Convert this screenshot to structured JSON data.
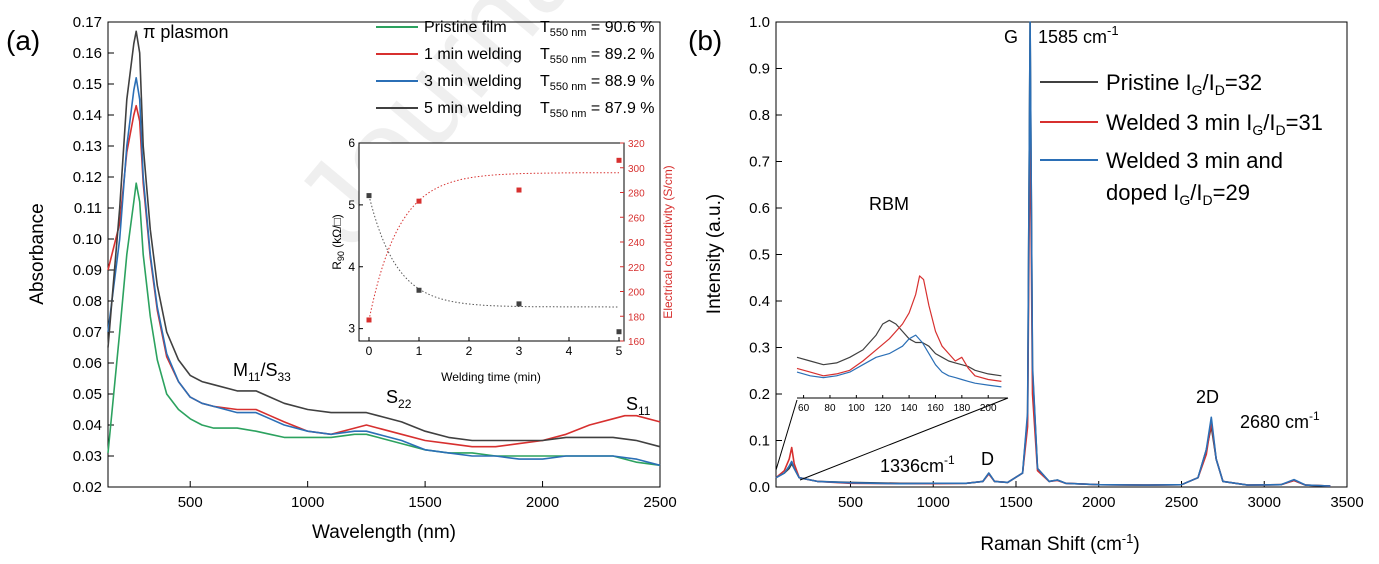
{
  "chart_data": [
    {
      "panel": "(a)",
      "type": "line",
      "xlabel": "Wavelength (nm)",
      "ylabel": "Absorbance",
      "xlim": [
        150,
        2500
      ],
      "ylim": [
        0.02,
        0.17
      ],
      "xticks": [
        500,
        1000,
        1500,
        2000,
        2500
      ],
      "yticks": [
        0.02,
        0.03,
        0.04,
        0.05,
        0.06,
        0.07,
        0.08,
        0.09,
        0.1,
        0.11,
        0.12,
        0.13,
        0.14,
        0.15,
        0.16,
        0.17
      ],
      "colors": [
        "#2ca25f",
        "#d7302f",
        "#2b6fb6",
        "#404040"
      ],
      "legend": [
        {
          "label": "Pristine film",
          "tlabel": "T",
          "tsub": "550 nm",
          "tvalue": " = 90.6 %"
        },
        {
          "label": "1 min welding",
          "tlabel": "T",
          "tsub": "550 nm",
          "tvalue": " = 89.2 %"
        },
        {
          "label": "3 min welding",
          "tlabel": "T",
          "tsub": "550 nm",
          "tvalue": " = 88.9 %"
        },
        {
          "label": "5 min welding",
          "tlabel": "T",
          "tsub": "550 nm",
          "tvalue": " = 87.9 %"
        }
      ],
      "series": [
        {
          "name": "Pristine film",
          "x": [
            150,
            200,
            230,
            260,
            270,
            285,
            300,
            330,
            360,
            400,
            450,
            500,
            550,
            600,
            700,
            780,
            840,
            900,
            1000,
            1100,
            1200,
            1250,
            1300,
            1400,
            1500,
            1600,
            1700,
            1800,
            1900,
            2000,
            2100,
            2200,
            2300,
            2400,
            2500
          ],
          "y": [
            0.031,
            0.07,
            0.095,
            0.112,
            0.118,
            0.112,
            0.095,
            0.075,
            0.061,
            0.05,
            0.045,
            0.042,
            0.04,
            0.039,
            0.039,
            0.038,
            0.037,
            0.036,
            0.036,
            0.036,
            0.037,
            0.037,
            0.036,
            0.034,
            0.032,
            0.031,
            0.031,
            0.03,
            0.03,
            0.03,
            0.03,
            0.03,
            0.03,
            0.028,
            0.027
          ]
        },
        {
          "name": "1 min welding",
          "x": [
            150,
            200,
            230,
            260,
            270,
            285,
            300,
            330,
            360,
            400,
            450,
            500,
            550,
            600,
            700,
            780,
            840,
            900,
            1000,
            1100,
            1200,
            1250,
            1300,
            1400,
            1500,
            1600,
            1700,
            1800,
            1900,
            2000,
            2100,
            2200,
            2300,
            2350,
            2400,
            2500
          ],
          "y": [
            0.09,
            0.105,
            0.128,
            0.14,
            0.143,
            0.138,
            0.118,
            0.094,
            0.077,
            0.062,
            0.054,
            0.049,
            0.047,
            0.046,
            0.045,
            0.045,
            0.043,
            0.041,
            0.038,
            0.037,
            0.039,
            0.04,
            0.039,
            0.037,
            0.035,
            0.034,
            0.033,
            0.033,
            0.034,
            0.035,
            0.037,
            0.04,
            0.042,
            0.043,
            0.043,
            0.041
          ]
        },
        {
          "name": "3 min welding",
          "x": [
            150,
            200,
            230,
            260,
            270,
            285,
            300,
            330,
            360,
            400,
            450,
            500,
            550,
            600,
            700,
            780,
            840,
            900,
            1000,
            1100,
            1200,
            1250,
            1300,
            1400,
            1500,
            1600,
            1700,
            1800,
            1900,
            2000,
            2100,
            2200,
            2300,
            2400,
            2500
          ],
          "y": [
            0.07,
            0.1,
            0.13,
            0.148,
            0.152,
            0.145,
            0.12,
            0.095,
            0.078,
            0.063,
            0.054,
            0.049,
            0.047,
            0.046,
            0.044,
            0.044,
            0.042,
            0.04,
            0.038,
            0.037,
            0.038,
            0.038,
            0.037,
            0.035,
            0.032,
            0.031,
            0.03,
            0.03,
            0.029,
            0.029,
            0.03,
            0.03,
            0.03,
            0.029,
            0.027
          ]
        },
        {
          "name": "5 min welding",
          "x": [
            150,
            200,
            230,
            260,
            270,
            285,
            300,
            330,
            360,
            400,
            450,
            500,
            550,
            600,
            700,
            780,
            840,
            900,
            1000,
            1100,
            1200,
            1250,
            1300,
            1400,
            1500,
            1600,
            1700,
            1800,
            1900,
            2000,
            2100,
            2200,
            2300,
            2400,
            2500
          ],
          "y": [
            0.065,
            0.11,
            0.145,
            0.163,
            0.167,
            0.16,
            0.13,
            0.103,
            0.085,
            0.07,
            0.061,
            0.056,
            0.054,
            0.053,
            0.051,
            0.051,
            0.049,
            0.047,
            0.045,
            0.044,
            0.044,
            0.044,
            0.043,
            0.041,
            0.038,
            0.036,
            0.035,
            0.035,
            0.035,
            0.035,
            0.036,
            0.036,
            0.036,
            0.035,
            0.033
          ]
        }
      ],
      "annotations": [
        {
          "text": "π plasmon",
          "x": 270,
          "y": 0.168
        },
        {
          "main": "M",
          "sub1": "11",
          "slash": "/S",
          "sub2": "33",
          "x": 820,
          "y": 0.053
        },
        {
          "main": "S",
          "sub1": "22",
          "x": 1250,
          "y": 0.046
        },
        {
          "main": "S",
          "sub1": "11",
          "x": 2320,
          "y": 0.046
        }
      ],
      "inset": {
        "type": "scatter",
        "xlabel": "Welding time (min)",
        "ylabel_main": "R",
        "ylabel_sub": "90",
        "ylabel_rest": " (kΩ/□)",
        "y2label": "Electrical conductivity (S/cm)",
        "xlim": [
          -0.2,
          5.1
        ],
        "ylim": [
          2.8,
          6.0
        ],
        "y2lim": [
          160,
          320
        ],
        "xticks": [
          0,
          1,
          2,
          3,
          4,
          5
        ],
        "yticks": [
          3,
          4,
          5,
          6
        ],
        "y2ticks": [
          160,
          180,
          200,
          220,
          240,
          260,
          280,
          300,
          320
        ],
        "series": [
          {
            "name": "R90",
            "color": "#404040",
            "x": [
              0,
              1,
              3,
              5
            ],
            "y": [
              5.15,
              3.62,
              3.4,
              2.95
            ]
          },
          {
            "name": "Electrical conductivity",
            "color": "#d7302f",
            "x": [
              0,
              1,
              3,
              5
            ],
            "y": [
              177,
              273,
              282,
              306
            ]
          }
        ]
      }
    },
    {
      "panel": "(b)",
      "type": "line",
      "xlabel_main": "Raman Shift (cm",
      "xlabel_sup": "-1",
      "xlabel_end": ")",
      "ylabel": "Intensity (a.u.)",
      "xlim": [
        50,
        3500
      ],
      "ylim": [
        0,
        1.0
      ],
      "xticks": [
        500,
        1000,
        1500,
        2000,
        2500,
        3000,
        3500
      ],
      "yticks": [
        0.0,
        0.1,
        0.2,
        0.3,
        0.4,
        0.5,
        0.6,
        0.7,
        0.8,
        0.9,
        1.0
      ],
      "colors": [
        "#404040",
        "#d7302f",
        "#2b6fb6"
      ],
      "legend": [
        {
          "label": "Pristine I",
          "sub1": "G",
          "mid": "/I",
          "sub2": "D",
          "value": "=32"
        },
        {
          "label": "Welded 3 min I",
          "sub1": "G",
          "mid": "/I",
          "sub2": "D",
          "value": "=31"
        },
        {
          "label": "Welded 3 min and",
          "label2": " doped I",
          "sub1": "G",
          "mid": "/I",
          "sub2": "D",
          "value": "=29"
        }
      ],
      "series": [
        {
          "name": "Pristine",
          "x": [
            50,
            100,
            130,
            145,
            160,
            190,
            300,
            500,
            800,
            1000,
            1200,
            1300,
            1336,
            1370,
            1450,
            1540,
            1570,
            1585,
            1600,
            1630,
            1700,
            1750,
            1800,
            2000,
            2300,
            2500,
            2600,
            2650,
            2680,
            2710,
            2750,
            2900,
            3100,
            3180,
            3250,
            3400
          ],
          "y": [
            0.02,
            0.03,
            0.04,
            0.05,
            0.04,
            0.02,
            0.012,
            0.01,
            0.008,
            0.008,
            0.008,
            0.012,
            0.03,
            0.012,
            0.01,
            0.03,
            0.15,
            1.0,
            0.25,
            0.04,
            0.012,
            0.015,
            0.008,
            0.005,
            0.004,
            0.005,
            0.02,
            0.08,
            0.13,
            0.06,
            0.012,
            0.004,
            0.005,
            0.014,
            0.004,
            0.002
          ]
        },
        {
          "name": "Welded 3 min",
          "x": [
            50,
            100,
            130,
            145,
            160,
            190,
            300,
            500,
            800,
            1000,
            1200,
            1300,
            1336,
            1370,
            1450,
            1540,
            1570,
            1585,
            1600,
            1630,
            1700,
            1750,
            1800,
            2000,
            2300,
            2500,
            2600,
            2650,
            2680,
            2710,
            2750,
            2900,
            3100,
            3180,
            3250,
            3400
          ],
          "y": [
            0.02,
            0.035,
            0.06,
            0.085,
            0.05,
            0.02,
            0.012,
            0.008,
            0.007,
            0.007,
            0.008,
            0.012,
            0.028,
            0.012,
            0.01,
            0.03,
            0.13,
            0.81,
            0.2,
            0.035,
            0.012,
            0.014,
            0.008,
            0.005,
            0.004,
            0.005,
            0.02,
            0.07,
            0.14,
            0.06,
            0.012,
            0.004,
            0.005,
            0.014,
            0.004,
            0.002
          ]
        },
        {
          "name": "Welded 3 min and doped",
          "x": [
            50,
            100,
            130,
            145,
            160,
            190,
            300,
            500,
            800,
            1000,
            1200,
            1300,
            1336,
            1370,
            1450,
            1540,
            1570,
            1585,
            1600,
            1630,
            1700,
            1750,
            1800,
            2000,
            2300,
            2500,
            2600,
            2650,
            2680,
            2710,
            2750,
            2900,
            3100,
            3180,
            3250,
            3400
          ],
          "y": [
            0.02,
            0.03,
            0.045,
            0.055,
            0.04,
            0.02,
            0.012,
            0.009,
            0.007,
            0.008,
            0.008,
            0.012,
            0.03,
            0.012,
            0.01,
            0.03,
            0.16,
            1.0,
            0.26,
            0.04,
            0.012,
            0.015,
            0.008,
            0.005,
            0.004,
            0.005,
            0.02,
            0.08,
            0.15,
            0.06,
            0.012,
            0.004,
            0.005,
            0.016,
            0.004,
            0.002
          ]
        }
      ],
      "annotations": [
        {
          "text": "G",
          "x": 1430,
          "y": 0.98
        },
        {
          "main": "1585 cm",
          "sup": "-1",
          "x": 1620,
          "y": 0.98
        },
        {
          "text": "1336cm",
          "sup": "-1",
          "x": 850,
          "y": 0.045
        },
        {
          "text": "D",
          "x": 1300,
          "y": 0.045
        },
        {
          "text": "2D",
          "x": 2620,
          "y": 0.18
        },
        {
          "main": "2680 cm",
          "sup": "-1",
          "x": 2730,
          "y": 0.12
        }
      ],
      "inset": {
        "title": "RBM",
        "xlim": [
          55,
          215
        ],
        "xticks": [
          60,
          80,
          100,
          120,
          140,
          160,
          180,
          200
        ],
        "series": [
          {
            "name": "Pristine",
            "color": "#404040",
            "x": [
              55,
              65,
              75,
              85,
              95,
              105,
              115,
              120,
              125,
              130,
              135,
              140,
              145,
              150,
              155,
              160,
              165,
              170,
              175,
              180,
              185,
              190,
              200,
              210
            ],
            "y": [
              0.26,
              0.25,
              0.24,
              0.245,
              0.26,
              0.28,
              0.32,
              0.35,
              0.36,
              0.35,
              0.33,
              0.31,
              0.3,
              0.3,
              0.29,
              0.27,
              0.26,
              0.25,
              0.245,
              0.24,
              0.235,
              0.225,
              0.215,
              0.21
            ]
          },
          {
            "name": "Welded 3 min",
            "color": "#d7302f",
            "x": [
              55,
              65,
              75,
              85,
              95,
              105,
              115,
              125,
              135,
              140,
              145,
              148,
              151,
              155,
              160,
              165,
              170,
              175,
              180,
              185,
              190,
              200,
              210
            ],
            "y": [
              0.23,
              0.22,
              0.21,
              0.215,
              0.225,
              0.25,
              0.28,
              0.31,
              0.35,
              0.38,
              0.43,
              0.48,
              0.47,
              0.4,
              0.33,
              0.29,
              0.27,
              0.25,
              0.26,
              0.23,
              0.21,
              0.2,
              0.195
            ]
          },
          {
            "name": "Welded 3 min and doped",
            "color": "#2b6fb6",
            "x": [
              55,
              65,
              75,
              85,
              95,
              105,
              115,
              125,
              135,
              140,
              145,
              150,
              155,
              160,
              165,
              170,
              175,
              180,
              185,
              190,
              200,
              210
            ],
            "y": [
              0.22,
              0.21,
              0.205,
              0.21,
              0.22,
              0.24,
              0.26,
              0.27,
              0.29,
              0.31,
              0.32,
              0.3,
              0.27,
              0.24,
              0.22,
              0.21,
              0.205,
              0.2,
              0.195,
              0.19,
              0.185,
              0.18
            ]
          }
        ]
      }
    }
  ],
  "watermark": "Journal"
}
